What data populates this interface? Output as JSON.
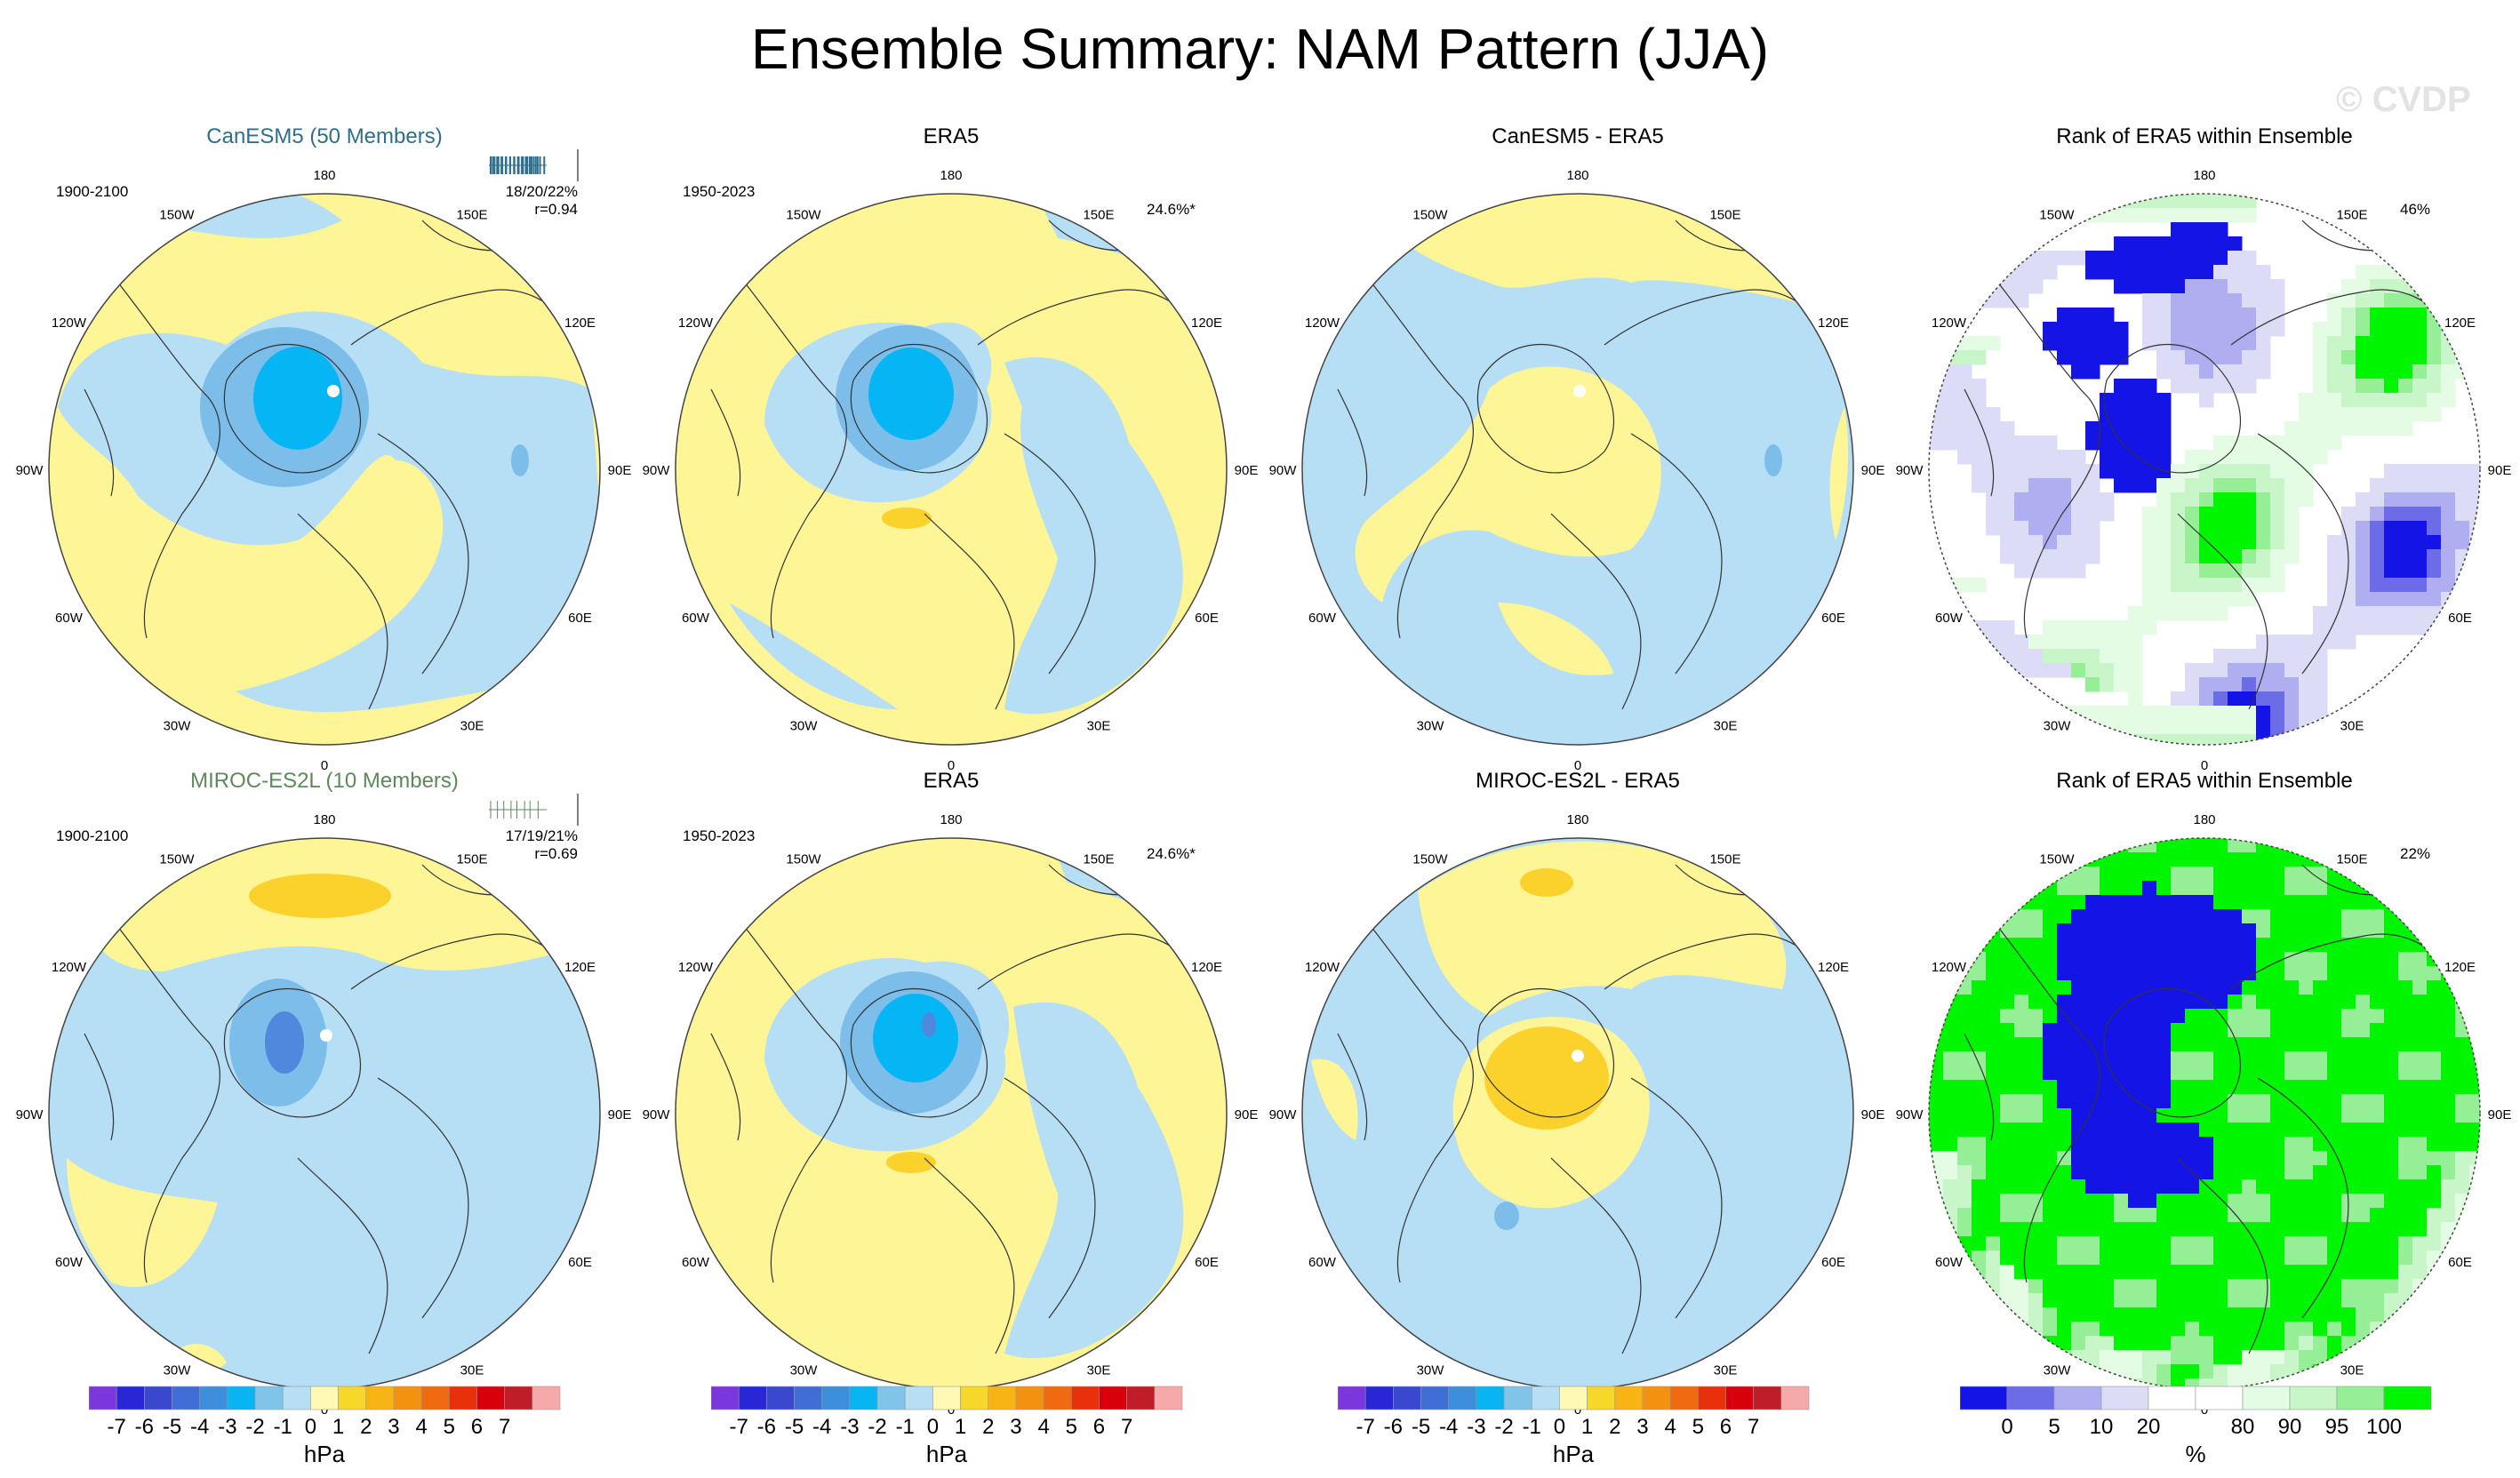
{
  "title": "Ensemble Summary: NAM Pattern (JJA)",
  "watermark": "© CVDP",
  "colors": {
    "yellow_light": "#fef597",
    "blue_light": "#b6def4",
    "blue_mid": "#7cbde9",
    "cyan": "#06b6f4",
    "blue_dark": "#4f88dc",
    "orange": "#fbd12b",
    "rank_green": "#00f500",
    "rank_blue": "#1414e6",
    "coast": "#333333",
    "hpa_scale": [
      "#7b36de",
      "#2727d8",
      "#3a48cf",
      "#3f6fd6",
      "#3d8fdd",
      "#09b4f2",
      "#80c4ea",
      "#b6def4",
      "#fff9b5",
      "#f7d82a",
      "#f7b414",
      "#f39111",
      "#f06a0f",
      "#e8300b",
      "#d7000b",
      "#bf1d27",
      "#f5a9a9"
    ],
    "rank_scale": [
      "#1414e6",
      "#6c6ce8",
      "#aeaef0",
      "#dcdcf6",
      "#ffffff",
      "#ffffff",
      "#e4fce4",
      "#c8f6c8",
      "#96ee96",
      "#00f500"
    ]
  },
  "lon_labels": [
    "180",
    "150E",
    "120E",
    "90E",
    "60E",
    "30E",
    "0",
    "30W",
    "60W",
    "90W",
    "120W",
    "150W"
  ],
  "panels": [
    {
      "id": "p1",
      "title": "CanESM5 (50 Members)",
      "title_color": "#2e6f8e",
      "period": "1900-2100",
      "stats": [
        "18/20/22%",
        "r=0.94"
      ],
      "sparkline": true,
      "has_period": true,
      "pct": ""
    },
    {
      "id": "p2",
      "title": "ERA5",
      "title_color": "#000000",
      "period": "1950-2023",
      "stats": [],
      "sparkline": false,
      "has_period": true,
      "pct": "24.6%*"
    },
    {
      "id": "p3",
      "title": "CanESM5 - ERA5",
      "title_color": "#000000",
      "period": "",
      "stats": [],
      "sparkline": false,
      "has_period": false,
      "pct": ""
    },
    {
      "id": "p4",
      "title": "Rank of ERA5 within Ensemble",
      "title_color": "#000000",
      "period": "",
      "stats": [],
      "sparkline": false,
      "has_period": false,
      "pct": "46%"
    },
    {
      "id": "p5",
      "title": "MIROC-ES2L (10 Members)",
      "title_color": "#5d8a5a",
      "period": "1900-2100",
      "stats": [
        "17/19/21%",
        "r=0.69"
      ],
      "sparkline": true,
      "has_period": true,
      "pct": ""
    },
    {
      "id": "p6",
      "title": "ERA5",
      "title_color": "#000000",
      "period": "1950-2023",
      "stats": [],
      "sparkline": false,
      "has_period": true,
      "pct": "24.6%*"
    },
    {
      "id": "p7",
      "title": "MIROC-ES2L - ERA5",
      "title_color": "#000000",
      "period": "",
      "stats": [],
      "sparkline": false,
      "has_period": false,
      "pct": ""
    },
    {
      "id": "p8",
      "title": "Rank of ERA5 within Ensemble",
      "title_color": "#000000",
      "period": "",
      "stats": [],
      "sparkline": false,
      "has_period": false,
      "pct": "22%"
    }
  ],
  "chart_data": [
    {
      "type": "heatmap",
      "title": "CanESM5 (50 Members)",
      "subtitle": "1900-2100",
      "annotations": [
        "18/20/22%",
        "r=0.94"
      ],
      "units": "hPa",
      "range": [
        -7,
        7
      ]
    },
    {
      "type": "heatmap",
      "title": "ERA5",
      "subtitle": "1950-2023",
      "annotations": [
        "24.6%*"
      ],
      "units": "hPa",
      "range": [
        -7,
        7
      ]
    },
    {
      "type": "heatmap",
      "title": "CanESM5 - ERA5",
      "units": "hPa",
      "range": [
        -7,
        7
      ]
    },
    {
      "type": "heatmap",
      "title": "Rank of ERA5 within Ensemble",
      "annotations": [
        "46%"
      ],
      "units": "%",
      "range": [
        0,
        100
      ]
    },
    {
      "type": "heatmap",
      "title": "MIROC-ES2L (10 Members)",
      "subtitle": "1900-2100",
      "annotations": [
        "17/19/21%",
        "r=0.69"
      ],
      "units": "hPa",
      "range": [
        -7,
        7
      ]
    },
    {
      "type": "heatmap",
      "title": "ERA5",
      "subtitle": "1950-2023",
      "annotations": [
        "24.6%*"
      ],
      "units": "hPa",
      "range": [
        -7,
        7
      ]
    },
    {
      "type": "heatmap",
      "title": "MIROC-ES2L - ERA5",
      "units": "hPa",
      "range": [
        -7,
        7
      ]
    },
    {
      "type": "heatmap",
      "title": "Rank of ERA5 within Ensemble",
      "annotations": [
        "22%"
      ],
      "units": "%",
      "range": [
        0,
        100
      ]
    }
  ],
  "colorbars": {
    "hpa": {
      "label": "hPa",
      "ticks": [
        "-7",
        "-6",
        "-5",
        "-4",
        "-3",
        "-2",
        "-1",
        "0",
        "1",
        "2",
        "3",
        "4",
        "5",
        "6",
        "7"
      ]
    },
    "rank": {
      "label": "%",
      "ticks": [
        "0",
        "5",
        "10",
        "20",
        "80",
        "90",
        "95",
        "100"
      ]
    }
  }
}
